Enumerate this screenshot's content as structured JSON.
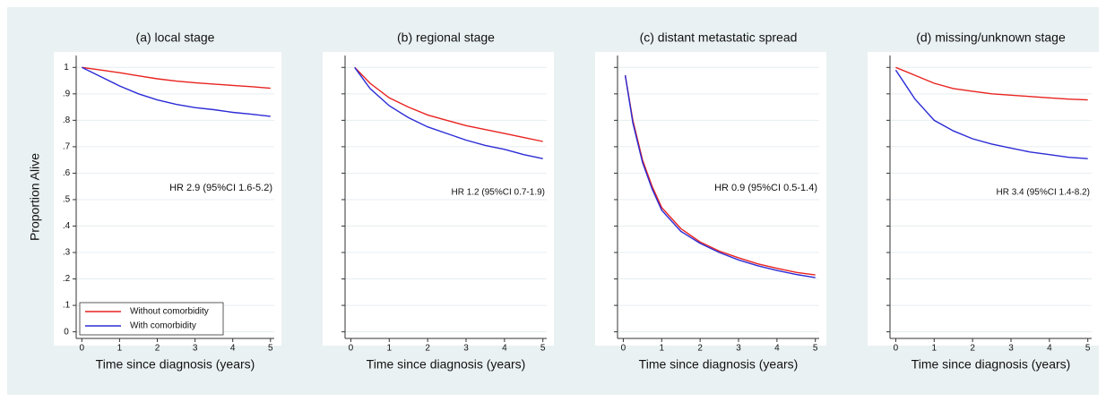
{
  "chart_data": [
    {
      "type": "line",
      "title": "(a) local stage",
      "x_label": "Time since diagnosis (years)",
      "y_label": "Proportion Alive",
      "annotation": "HR 2.9 (95%CI 1.6-5.2)",
      "legend": "bottom-left",
      "x": [
        0,
        0.5,
        1,
        1.5,
        2,
        2.5,
        3,
        3.5,
        4,
        4.5,
        5
      ],
      "series": [
        {
          "name": "Without comorbidity",
          "color": "#e8231f",
          "values": [
            1,
            0.99,
            0.98,
            0.968,
            0.957,
            0.948,
            0.942,
            0.937,
            0.932,
            0.927,
            0.921
          ]
        },
        {
          "name": "With comorbidity",
          "color": "#2b2bd6",
          "values": [
            1,
            0.965,
            0.93,
            0.9,
            0.877,
            0.86,
            0.848,
            0.84,
            0.83,
            0.823,
            0.815
          ]
        }
      ],
      "xlim": [
        -0.15,
        5.1
      ],
      "ylim": [
        -0.025,
        1.045
      ],
      "xticks": [
        0,
        1,
        2,
        3,
        4,
        5
      ],
      "yticks": [
        {
          "value": 0,
          "label": "0"
        },
        {
          "value": 0.1,
          "label": ".1"
        },
        {
          "value": 0.2,
          "label": ".2"
        },
        {
          "value": 0.3,
          "label": ".3"
        },
        {
          "value": 0.4,
          "label": ".4"
        },
        {
          "value": 0.5,
          "label": ".5"
        },
        {
          "value": 0.6,
          "label": ".6"
        },
        {
          "value": 0.7,
          "label": ".7"
        },
        {
          "value": 0.8,
          "label": ".8"
        },
        {
          "value": 0.9,
          "label": ".9"
        },
        {
          "value": 1,
          "label": "1"
        }
      ],
      "grid": true
    },
    {
      "type": "line",
      "title": "(b) regional stage",
      "x_label": "Time since diagnosis (years)",
      "annotation": "HR 1.2 (95%CI 0.7-1.9)",
      "x": [
        0.1,
        0.5,
        1,
        1.5,
        2,
        2.5,
        3,
        3.5,
        4,
        4.5,
        5
      ],
      "series": [
        {
          "color": "#e8231f",
          "values": [
            1,
            0.94,
            0.885,
            0.85,
            0.82,
            0.8,
            0.78,
            0.765,
            0.75,
            0.735,
            0.72
          ]
        },
        {
          "color": "#2b2bd6",
          "values": [
            1,
            0.92,
            0.855,
            0.81,
            0.775,
            0.75,
            0.725,
            0.705,
            0.69,
            0.67,
            0.655
          ]
        }
      ],
      "xlim": [
        -0.15,
        5.1
      ],
      "ylim": [
        -0.025,
        1.045
      ],
      "xticks": [
        0,
        1,
        2,
        3,
        4,
        5
      ],
      "yticks": [
        0,
        0.1,
        0.2,
        0.3,
        0.4,
        0.5,
        0.6,
        0.7,
        0.8,
        0.9,
        1
      ],
      "grid": true
    },
    {
      "type": "line",
      "title": "(c) distant metastatic spread",
      "x_label": "Time since diagnosis (years)",
      "annotation": "HR 0.9 (95%CI 0.5-1.4)",
      "x": [
        0.05,
        0.25,
        0.5,
        0.75,
        1,
        1.5,
        2,
        2.5,
        3,
        3.5,
        4,
        4.5,
        5
      ],
      "series": [
        {
          "color": "#e8231f",
          "values": [
            0.97,
            0.8,
            0.65,
            0.55,
            0.47,
            0.39,
            0.34,
            0.305,
            0.28,
            0.257,
            0.24,
            0.225,
            0.215
          ]
        },
        {
          "color": "#2b2bd6",
          "values": [
            0.97,
            0.79,
            0.64,
            0.54,
            0.46,
            0.38,
            0.335,
            0.3,
            0.272,
            0.25,
            0.232,
            0.217,
            0.205
          ]
        }
      ],
      "xlim": [
        -0.15,
        5.1
      ],
      "ylim": [
        -0.025,
        1.045
      ],
      "xticks": [
        0,
        1,
        2,
        3,
        4,
        5
      ],
      "yticks": [
        0,
        0.1,
        0.2,
        0.3,
        0.4,
        0.5,
        0.6,
        0.7,
        0.8,
        0.9,
        1
      ],
      "grid": true
    },
    {
      "type": "line",
      "title": "(d) missing/unknown stage",
      "x_label": "Time since diagnosis (years)",
      "annotation": "HR 3.4 (95%CI 1.4-8.2)",
      "x": [
        0,
        0.5,
        1,
        1.5,
        2,
        2.5,
        3,
        3.5,
        4,
        4.5,
        5
      ],
      "series": [
        {
          "color": "#e8231f",
          "values": [
            1,
            0.97,
            0.94,
            0.92,
            0.91,
            0.9,
            0.895,
            0.89,
            0.885,
            0.88,
            0.877
          ]
        },
        {
          "color": "#2b2bd6",
          "values": [
            0.99,
            0.88,
            0.8,
            0.76,
            0.73,
            0.71,
            0.695,
            0.68,
            0.67,
            0.66,
            0.655
          ]
        }
      ],
      "xlim": [
        -0.15,
        5.1
      ],
      "ylim": [
        -0.025,
        1.045
      ],
      "xticks": [
        0,
        1,
        2,
        3,
        4,
        5
      ],
      "yticks": [
        0,
        0.1,
        0.2,
        0.3,
        0.4,
        0.5,
        0.6,
        0.7,
        0.8,
        0.9,
        1
      ],
      "grid": true
    }
  ]
}
